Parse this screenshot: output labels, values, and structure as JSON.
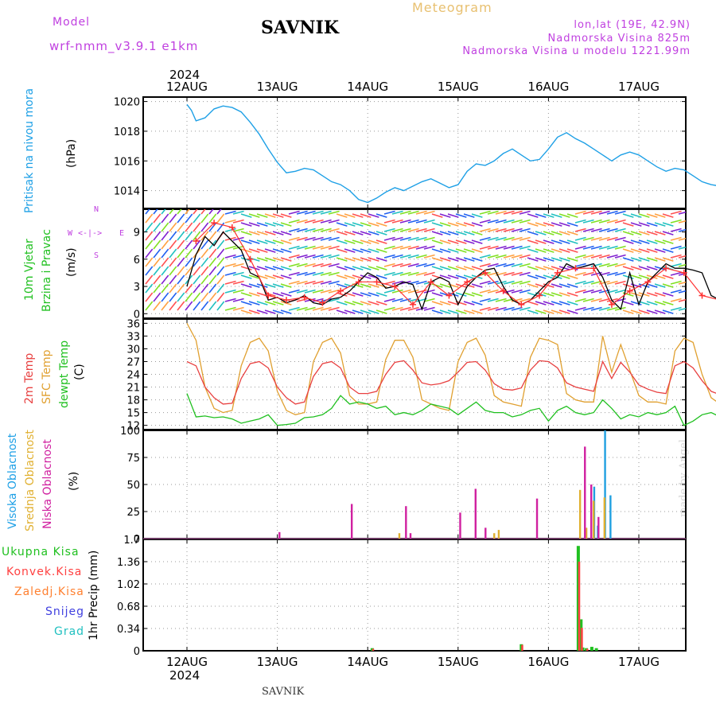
{
  "header": {
    "model_label": "Model",
    "model_name": "wrf-nmm_v3.9.1  e1km",
    "station": "SAVNIK",
    "chart_title": "Meteogram",
    "lonlat": "lon,lat (19E, 42.9N)",
    "altitude": "Nadmorska Visina 825m",
    "model_altitude": "Nadmorska Visina u modelu 1221.99m",
    "footer_station": "SAVNIK",
    "credit": "made by Angel",
    "year_label": "2024"
  },
  "colors": {
    "pressure": "#1ea0e6",
    "wind_speed": "#000000",
    "gust": "#ff3030",
    "t2m": "#e84040",
    "sfc": "#e0a030",
    "dewpoint": "#20c020",
    "high_cloud": "#20a0e0",
    "mid_cloud": "#e0b030",
    "low_cloud": "#d020a0",
    "total_precip": "#20c020",
    "convective": "#ff4040",
    "frozen": "#ff8030",
    "snow": "#4040e0",
    "hail": "#20c0c0",
    "compass": "#c040e0"
  },
  "chart_data": [
    {
      "type": "line",
      "panel": "pressure",
      "ylabel_name": "Pritisak na nivou mora",
      "ylabel_unit": "(hPa)",
      "ylim": [
        1012.8,
        1020.3
      ],
      "yticks": [
        1014,
        1016,
        1018,
        1020
      ],
      "x_unit": "days since 2024-08-11 12:00 UTC",
      "xlim": [
        0,
        6
      ],
      "x_ticks": [
        "12AUG",
        "13AUG",
        "14AUG",
        "15AUG",
        "16AUG",
        "17AUG"
      ],
      "grid": true,
      "series": [
        {
          "name": "pressure",
          "x": [
            0,
            0.05,
            0.1,
            0.2,
            0.3,
            0.4,
            0.5,
            0.6,
            0.7,
            0.8,
            0.9,
            1.0,
            1.1,
            1.2,
            1.3,
            1.4,
            1.5,
            1.6,
            1.7,
            1.8,
            1.9,
            2.0,
            2.1,
            2.2,
            2.3,
            2.4,
            2.5,
            2.6,
            2.7,
            2.8,
            2.9,
            3.0,
            3.1,
            3.2,
            3.3,
            3.4,
            3.5,
            3.6,
            3.7,
            3.8,
            3.9,
            4.0,
            4.1,
            4.2,
            4.3,
            4.4,
            4.5,
            4.6,
            4.7,
            4.8,
            4.9,
            5.0,
            5.1,
            5.2,
            5.3,
            5.4,
            5.5,
            5.6,
            5.7,
            5.8,
            5.9,
            6.0
          ],
          "values": [
            1019.8,
            1019.4,
            1018.7,
            1018.9,
            1019.5,
            1019.7,
            1019.6,
            1019.3,
            1018.6,
            1017.8,
            1016.8,
            1015.9,
            1015.2,
            1015.3,
            1015.5,
            1015.4,
            1015.0,
            1014.6,
            1014.4,
            1014.0,
            1013.4,
            1013.2,
            1013.5,
            1013.9,
            1014.2,
            1014.0,
            1014.3,
            1014.6,
            1014.8,
            1014.5,
            1014.2,
            1014.4,
            1015.3,
            1015.8,
            1015.7,
            1016.0,
            1016.5,
            1016.8,
            1016.4,
            1016.0,
            1016.1,
            1016.8,
            1017.6,
            1017.9,
            1017.5,
            1017.2,
            1016.8,
            1016.4,
            1016.0,
            1016.4,
            1016.6,
            1016.4,
            1016.0,
            1015.6,
            1015.3,
            1015.5,
            1015.4,
            1015.0,
            1014.6,
            1014.4,
            1014.3,
            1014.6
          ]
        }
      ]
    },
    {
      "type": "line",
      "panel": "wind",
      "ylabel_name": "10m Vjetar",
      "ylabel_name2": "Brzina i Pravac",
      "ylabel_unit": "(m/s)",
      "ylim": [
        -0.5,
        11.5
      ],
      "yticks": [
        0,
        3,
        6,
        9
      ],
      "compass": {
        "north": "N",
        "south": "S",
        "west": "W",
        "east": "E"
      },
      "x_unit": "days since 2024-08-11 12:00 UTC",
      "xlim": [
        0,
        6
      ],
      "grid": true,
      "series": [
        {
          "name": "wind_speed",
          "x": [
            0,
            0.1,
            0.2,
            0.3,
            0.4,
            0.5,
            0.6,
            0.7,
            0.8,
            0.9,
            1.0,
            1.1,
            1.2,
            1.3,
            1.4,
            1.5,
            1.6,
            1.7,
            1.8,
            1.9,
            2.0,
            2.1,
            2.2,
            2.3,
            2.4,
            2.5,
            2.6,
            2.7,
            2.8,
            2.9,
            3.0,
            3.1,
            3.2,
            3.3,
            3.4,
            3.5,
            3.6,
            3.7,
            3.8,
            3.9,
            4.0,
            4.1,
            4.2,
            4.3,
            4.4,
            4.5,
            4.6,
            4.7,
            4.8,
            4.9,
            5.0,
            5.1,
            5.2,
            5.3,
            5.4,
            5.5,
            5.6,
            5.7,
            5.8,
            5.9,
            6.0
          ],
          "values": [
            3.0,
            6.5,
            8.5,
            7.5,
            9.0,
            8.0,
            7.0,
            4.5,
            4.0,
            1.5,
            1.8,
            1.2,
            1.5,
            2.0,
            1.2,
            1.0,
            1.6,
            1.8,
            2.5,
            3.5,
            4.5,
            4.0,
            2.8,
            3.0,
            3.5,
            3.2,
            0.5,
            3.5,
            4.0,
            3.5,
            1.0,
            3.0,
            4.0,
            4.8,
            5.0,
            3.0,
            1.5,
            1.0,
            1.5,
            2.5,
            3.5,
            4.0,
            5.5,
            5.0,
            5.2,
            5.5,
            4.0,
            1.5,
            0.5,
            4.5,
            1.0,
            3.5,
            4.5,
            5.5,
            5.0,
            5.0,
            4.8,
            4.5,
            2.0,
            1.5,
            2.5
          ]
        },
        {
          "name": "gust",
          "x": [
            0.1,
            0.3,
            0.5,
            0.7,
            0.9,
            1.1,
            1.3,
            1.5,
            1.7,
            1.9,
            2.1,
            2.3,
            2.5,
            2.7,
            2.9,
            3.1,
            3.3,
            3.5,
            3.7,
            3.9,
            4.1,
            4.3,
            4.5,
            4.7,
            4.9,
            5.1,
            5.3,
            5.5,
            5.7,
            5.9
          ],
          "values": [
            8.0,
            10.0,
            9.5,
            6.0,
            2.0,
            1.5,
            1.8,
            1.2,
            2.5,
            3.5,
            3.5,
            3.0,
            1.0,
            3.5,
            2.0,
            3.5,
            4.5,
            2.5,
            1.0,
            2.0,
            4.5,
            5.0,
            5.0,
            1.0,
            2.5,
            3.5,
            5.0,
            4.5,
            2.0,
            1.5
          ]
        }
      ]
    },
    {
      "type": "line",
      "panel": "temperature",
      "ylabel_names": [
        "2m Temp",
        "SFC Temp",
        "dewpt Temp"
      ],
      "ylabel_unit": "(C)",
      "ylim": [
        11,
        37
      ],
      "yticks": [
        12,
        15,
        18,
        21,
        24,
        27,
        30,
        33,
        36
      ],
      "x_unit": "days since 2024-08-11 12:00 UTC",
      "xlim": [
        0,
        6
      ],
      "grid": true,
      "series": [
        {
          "name": "2m_temp",
          "x": [
            0,
            0.1,
            0.2,
            0.3,
            0.4,
            0.5,
            0.6,
            0.7,
            0.8,
            0.9,
            1.0,
            1.1,
            1.2,
            1.3,
            1.4,
            1.5,
            1.6,
            1.7,
            1.8,
            1.9,
            2.0,
            2.1,
            2.2,
            2.3,
            2.4,
            2.5,
            2.6,
            2.7,
            2.8,
            2.9,
            3.0,
            3.1,
            3.2,
            3.3,
            3.4,
            3.5,
            3.6,
            3.7,
            3.8,
            3.9,
            4.0,
            4.1,
            4.2,
            4.3,
            4.4,
            4.5,
            4.6,
            4.7,
            4.8,
            4.9,
            5.0,
            5.1,
            5.2,
            5.3,
            5.4,
            5.5,
            5.6,
            5.7,
            5.8,
            5.9,
            6.0
          ],
          "values": [
            27.0,
            26.0,
            21.0,
            18.5,
            17.0,
            17.2,
            23.0,
            26.5,
            27.0,
            25.5,
            21.0,
            18.5,
            17.0,
            17.5,
            23.5,
            26.5,
            27.0,
            25.5,
            21.0,
            19.5,
            19.5,
            20.0,
            24.0,
            26.8,
            27.2,
            25.0,
            22.0,
            21.5,
            21.8,
            22.5,
            24.5,
            26.8,
            27.0,
            25.0,
            21.8,
            20.5,
            20.3,
            20.8,
            25.0,
            27.2,
            27.0,
            25.5,
            22.0,
            21.0,
            20.5,
            20.0,
            27.0,
            23.0,
            26.8,
            24.5,
            21.5,
            20.5,
            19.8,
            19.5,
            26.0,
            27.0,
            25.5,
            22.5,
            20.0,
            19.2,
            23.5
          ]
        },
        {
          "name": "sfc_temp",
          "x": [
            0,
            0.1,
            0.2,
            0.3,
            0.4,
            0.5,
            0.6,
            0.7,
            0.8,
            0.9,
            1.0,
            1.1,
            1.2,
            1.3,
            1.4,
            1.5,
            1.6,
            1.7,
            1.8,
            1.9,
            2.0,
            2.1,
            2.2,
            2.3,
            2.4,
            2.5,
            2.6,
            2.7,
            2.8,
            2.9,
            3.0,
            3.1,
            3.2,
            3.3,
            3.4,
            3.5,
            3.6,
            3.7,
            3.8,
            3.9,
            4.0,
            4.1,
            4.2,
            4.3,
            4.4,
            4.5,
            4.6,
            4.7,
            4.8,
            4.9,
            5.0,
            5.1,
            5.2,
            5.3,
            5.4,
            5.5,
            5.6,
            5.7,
            5.8,
            5.9,
            6.0
          ],
          "values": [
            36.0,
            32.0,
            21.0,
            16.0,
            15.0,
            15.5,
            26.0,
            31.5,
            32.5,
            29.5,
            20.0,
            15.5,
            14.5,
            15.0,
            27.0,
            31.5,
            32.5,
            29.0,
            19.0,
            17.0,
            17.0,
            17.5,
            27.5,
            32.0,
            32.0,
            28.0,
            18.0,
            17.0,
            16.0,
            15.5,
            27.0,
            31.5,
            32.5,
            28.5,
            19.0,
            17.5,
            17.0,
            16.5,
            28.0,
            32.5,
            32.0,
            31.0,
            19.5,
            18.0,
            17.5,
            17.5,
            33.0,
            24.5,
            31.0,
            25.0,
            19.0,
            17.5,
            17.5,
            17.0,
            29.5,
            32.5,
            31.5,
            24.0,
            18.5,
            17.0,
            23.5
          ]
        },
        {
          "name": "dewpt_temp",
          "x": [
            0,
            0.1,
            0.2,
            0.3,
            0.4,
            0.5,
            0.6,
            0.7,
            0.8,
            0.9,
            1.0,
            1.1,
            1.2,
            1.3,
            1.4,
            1.5,
            1.6,
            1.7,
            1.8,
            1.9,
            2.0,
            2.1,
            2.2,
            2.3,
            2.4,
            2.5,
            2.6,
            2.7,
            2.8,
            2.9,
            3.0,
            3.1,
            3.2,
            3.3,
            3.4,
            3.5,
            3.6,
            3.7,
            3.8,
            3.9,
            4.0,
            4.1,
            4.2,
            4.3,
            4.4,
            4.5,
            4.6,
            4.7,
            4.8,
            4.9,
            5.0,
            5.1,
            5.2,
            5.3,
            5.4,
            5.5,
            5.6,
            5.7,
            5.8,
            5.9,
            6.0
          ],
          "values": [
            19.5,
            14.0,
            14.2,
            13.8,
            14.0,
            13.5,
            12.5,
            13.0,
            13.5,
            14.5,
            12.0,
            12.2,
            12.5,
            13.8,
            14.0,
            14.5,
            16.0,
            19.0,
            17.0,
            17.5,
            17.0,
            16.0,
            16.5,
            14.5,
            15.0,
            14.5,
            15.5,
            17.0,
            16.5,
            16.0,
            14.5,
            16.0,
            17.5,
            15.5,
            15.0,
            15.0,
            14.0,
            14.5,
            15.5,
            16.0,
            13.0,
            15.5,
            16.5,
            15.0,
            14.5,
            15.0,
            18.0,
            16.0,
            13.5,
            14.5,
            14.0,
            15.0,
            14.5,
            15.0,
            16.5,
            12.0,
            13.0,
            14.5,
            15.0,
            14.0,
            15.5
          ]
        }
      ]
    },
    {
      "type": "bar",
      "panel": "cloud",
      "ylabel_names": [
        "Visoka Oblacnost",
        "Srednja Oblacnost",
        "Niska Oblacnost"
      ],
      "ylabel_unit": "(%)",
      "ylim": [
        0,
        100
      ],
      "yticks": [
        0,
        25,
        50,
        75,
        100
      ],
      "x_unit": "days since 2024-08-11 12:00 UTC",
      "xlim": [
        0,
        6
      ],
      "grid": true,
      "series": [
        {
          "name": "high",
          "x": [
            4.48,
            4.52,
            4.6,
            4.66,
            5.95
          ],
          "values": [
            48,
            12,
            100,
            40,
            82
          ]
        },
        {
          "name": "mid",
          "x": [
            2.35,
            3.4,
            3.45,
            4.35,
            4.42,
            4.5,
            4.62,
            5.97
          ],
          "values": [
            5,
            5,
            8,
            45,
            10,
            35,
            38,
            56
          ]
        },
        {
          "name": "low",
          "x": [
            1.05,
            1.85,
            2.45,
            2.5,
            3.05,
            3.22,
            3.33,
            3.9,
            4.43,
            4.5,
            4.58,
            5.92
          ],
          "values": [
            6,
            32,
            30,
            5,
            24,
            46,
            10,
            37,
            85,
            50,
            20,
            58
          ]
        }
      ]
    },
    {
      "type": "bar",
      "panel": "precip",
      "ylabel_names": [
        "Ukupna Kisa",
        "Konvek.Kisa",
        "Zaledj.Kisa",
        "Snijeg",
        "Grad"
      ],
      "ylabel_unit": "1hr Precip (mm)",
      "ylim": [
        0,
        1.7
      ],
      "yticks": [
        0,
        0.34,
        0.68,
        1.02,
        1.36,
        1.7
      ],
      "ytick_labels": [
        "0",
        "0.34",
        "0.68",
        "1.02",
        "1.36",
        "1.7"
      ],
      "x_unit": "days since 2024-08-11 12:00 UTC",
      "xlim": [
        0,
        6
      ],
      "x_ticks": [
        "12AUG",
        "13AUG",
        "14AUG",
        "15AUG",
        "16AUG",
        "17AUG"
      ],
      "grid": true,
      "series": [
        {
          "name": "total",
          "x": [
            2.05,
            3.7,
            4.33,
            4.36,
            4.38,
            4.42,
            4.48,
            4.53,
            5.95,
            5.99
          ],
          "values": [
            0.04,
            0.1,
            1.6,
            0.48,
            0.05,
            0.04,
            0.06,
            0.04,
            0.25,
            0.78
          ]
        },
        {
          "name": "convective",
          "x": [
            2.06,
            3.71,
            4.34,
            4.37,
            4.43,
            5.96,
            6.0
          ],
          "values": [
            0.03,
            0.09,
            1.36,
            0.35,
            0.03,
            0.22,
            0.75
          ]
        }
      ]
    }
  ],
  "xaxis": {
    "top_labels": [
      "12AUG",
      "13AUG",
      "14AUG",
      "15AUG",
      "16AUG",
      "17AUG"
    ],
    "bottom_labels": [
      "12AUG",
      "13AUG",
      "14AUG",
      "15AUG",
      "16AUG",
      "17AUG"
    ]
  }
}
